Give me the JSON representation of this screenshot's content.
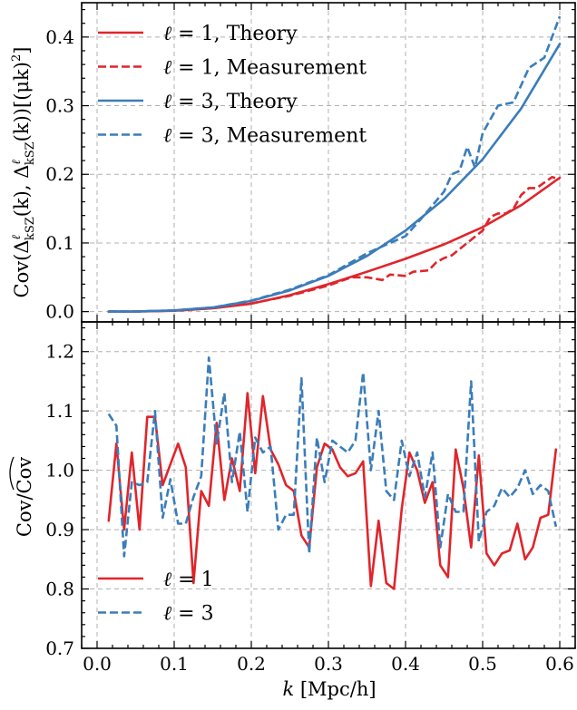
{
  "colors": {
    "l1": "#e0252b",
    "l3": "#3a7dba",
    "grid": "#b0b0b0"
  },
  "chart_data": [
    {
      "type": "line",
      "panel": "top",
      "ylabel": "Cov(Δ^ℓ_kSZ(k), Δ^ℓ_kSZ(k))[(μk)^2]",
      "ylabel_parts": {
        "pre": "Cov",
        "delta": "Δ",
        "sup": "ℓ",
        "sub": "kSZ",
        "arg": "(k)",
        "unit": "[(μk)",
        "unit_exp": "2",
        "close": "]"
      },
      "ylim": [
        -0.015,
        0.45
      ],
      "yticks": [
        0.0,
        0.1,
        0.2,
        0.3,
        0.4
      ],
      "ytick_labels": [
        "0.0",
        "0.1",
        "0.2",
        "0.3",
        "0.4"
      ],
      "xlim": [
        -0.02,
        0.62
      ],
      "grid": true,
      "legend_position": "top-left",
      "series": [
        {
          "name": "ℓ = 1, Theory",
          "legend_sym": "ℓ",
          "legend_eq": " = 1, Theory",
          "style": "solid",
          "color": "#e0252b",
          "x": [
            0.015,
            0.05,
            0.1,
            0.15,
            0.2,
            0.25,
            0.3,
            0.35,
            0.4,
            0.45,
            0.5,
            0.55,
            0.6
          ],
          "y": [
            0.0,
            0.0001,
            0.0013,
            0.0048,
            0.0116,
            0.024,
            0.04,
            0.058,
            0.077,
            0.098,
            0.123,
            0.155,
            0.195
          ]
        },
        {
          "name": "ℓ = 1, Measurement",
          "legend_sym": "ℓ",
          "legend_eq": " = 1, Measurement",
          "style": "dashed",
          "color": "#e0252b",
          "x": [
            0.015,
            0.05,
            0.1,
            0.15,
            0.2,
            0.25,
            0.3,
            0.33,
            0.35,
            0.37,
            0.38,
            0.4,
            0.41,
            0.43,
            0.44,
            0.45,
            0.46,
            0.48,
            0.5,
            0.51,
            0.52,
            0.53,
            0.54,
            0.55,
            0.56,
            0.57,
            0.58,
            0.59,
            0.6
          ],
          "y": [
            0.0,
            0.0002,
            0.0014,
            0.005,
            0.012,
            0.023,
            0.038,
            0.05,
            0.05,
            0.046,
            0.054,
            0.052,
            0.058,
            0.06,
            0.072,
            0.078,
            0.082,
            0.1,
            0.118,
            0.138,
            0.143,
            0.143,
            0.15,
            0.17,
            0.18,
            0.18,
            0.188,
            0.196,
            0.193
          ]
        },
        {
          "name": "ℓ = 3, Theory",
          "legend_sym": "ℓ",
          "legend_eq": " = 3, Theory",
          "style": "solid",
          "color": "#3a7dba",
          "x": [
            0.015,
            0.05,
            0.1,
            0.15,
            0.2,
            0.25,
            0.3,
            0.35,
            0.4,
            0.45,
            0.5,
            0.55,
            0.6
          ],
          "y": [
            0.0,
            0.0002,
            0.0018,
            0.006,
            0.0155,
            0.031,
            0.052,
            0.081,
            0.118,
            0.164,
            0.222,
            0.296,
            0.39
          ]
        },
        {
          "name": "ℓ = 3, Measurement",
          "legend_sym": "ℓ",
          "legend_eq": " = 3, Measurement",
          "style": "dashed",
          "color": "#3a7dba",
          "x": [
            0.015,
            0.05,
            0.1,
            0.15,
            0.2,
            0.25,
            0.3,
            0.35,
            0.38,
            0.4,
            0.42,
            0.45,
            0.46,
            0.47,
            0.48,
            0.49,
            0.5,
            0.52,
            0.54,
            0.56,
            0.58,
            0.6
          ],
          "y": [
            0.0,
            0.0002,
            0.0018,
            0.006,
            0.016,
            0.032,
            0.053,
            0.085,
            0.1,
            0.11,
            0.135,
            0.175,
            0.2,
            0.205,
            0.24,
            0.21,
            0.26,
            0.3,
            0.305,
            0.355,
            0.37,
            0.43
          ]
        }
      ]
    },
    {
      "type": "line",
      "panel": "bottom",
      "xlabel": "k [Mpc/h]",
      "xlabel_parts": {
        "var": "k",
        "unit": " [Mpc/h]"
      },
      "ylabel": "Cov/Ĉov",
      "ylabel_parts": {
        "num": "Cov/",
        "hat": "Cov"
      },
      "ylim": [
        0.7,
        1.25
      ],
      "yticks": [
        0.7,
        0.8,
        0.9,
        1.0,
        1.1,
        1.2
      ],
      "ytick_labels": [
        "0.7",
        "0.8",
        "0.9",
        "1.0",
        "1.1",
        "1.2"
      ],
      "xlim": [
        -0.02,
        0.62
      ],
      "xticks": [
        0.0,
        0.1,
        0.2,
        0.3,
        0.4,
        0.5,
        0.6
      ],
      "xtick_labels": [
        "0.0",
        "0.1",
        "0.2",
        "0.3",
        "0.4",
        "0.5",
        "0.6"
      ],
      "grid": true,
      "legend_position": "bottom-left",
      "series": [
        {
          "name": "ℓ = 1",
          "legend_sym": "ℓ",
          "legend_eq": " = 1",
          "style": "solid",
          "color": "#e0252b",
          "x": [
            0.015,
            0.025,
            0.035,
            0.045,
            0.055,
            0.065,
            0.075,
            0.085,
            0.095,
            0.105,
            0.115,
            0.125,
            0.135,
            0.145,
            0.155,
            0.165,
            0.175,
            0.185,
            0.195,
            0.205,
            0.215,
            0.225,
            0.235,
            0.245,
            0.255,
            0.265,
            0.275,
            0.285,
            0.295,
            0.305,
            0.315,
            0.325,
            0.335,
            0.345,
            0.355,
            0.365,
            0.375,
            0.385,
            0.395,
            0.405,
            0.415,
            0.425,
            0.435,
            0.445,
            0.455,
            0.465,
            0.475,
            0.485,
            0.495,
            0.505,
            0.515,
            0.525,
            0.535,
            0.545,
            0.555,
            0.565,
            0.575,
            0.585,
            0.595
          ],
          "y": [
            0.915,
            1.045,
            0.9,
            1.03,
            0.9,
            1.09,
            1.09,
            0.975,
            1.01,
            1.045,
            1.005,
            0.81,
            0.965,
            0.94,
            1.08,
            0.95,
            1.02,
            0.965,
            1.13,
            0.995,
            1.125,
            1.035,
            1.01,
            0.975,
            0.965,
            0.89,
            0.87,
            1.005,
            1.045,
            1.035,
            1.005,
            0.99,
            0.995,
            1.015,
            0.805,
            0.915,
            0.81,
            0.8,
            0.935,
            1.03,
            1.0,
            0.945,
            0.98,
            0.84,
            0.82,
            1.035,
            0.97,
            0.87,
            1.025,
            0.86,
            0.84,
            0.86,
            0.865,
            0.91,
            0.85,
            0.87,
            0.92,
            0.925,
            1.035
          ]
        },
        {
          "name": "ℓ = 3",
          "legend_sym": "ℓ",
          "legend_eq": " = 3",
          "style": "dashed",
          "color": "#3a7dba",
          "x": [
            0.015,
            0.025,
            0.035,
            0.045,
            0.055,
            0.065,
            0.075,
            0.085,
            0.095,
            0.105,
            0.115,
            0.125,
            0.135,
            0.145,
            0.155,
            0.165,
            0.175,
            0.185,
            0.195,
            0.205,
            0.215,
            0.225,
            0.235,
            0.245,
            0.255,
            0.265,
            0.275,
            0.285,
            0.295,
            0.305,
            0.315,
            0.325,
            0.335,
            0.345,
            0.355,
            0.365,
            0.375,
            0.385,
            0.395,
            0.405,
            0.415,
            0.425,
            0.435,
            0.445,
            0.455,
            0.465,
            0.475,
            0.485,
            0.495,
            0.505,
            0.515,
            0.525,
            0.535,
            0.545,
            0.555,
            0.565,
            0.575,
            0.585,
            0.595
          ],
          "y": [
            1.095,
            1.075,
            0.855,
            0.98,
            0.975,
            0.98,
            1.1,
            0.92,
            0.985,
            0.91,
            0.91,
            0.955,
            0.99,
            1.19,
            1.045,
            1.13,
            0.98,
            1.065,
            0.93,
            1.055,
            1.03,
            1.04,
            0.9,
            0.925,
            0.925,
            1.155,
            0.86,
            1.055,
            0.98,
            1.05,
            1.04,
            1.03,
            1.05,
            1.165,
            1.0,
            1.1,
            0.965,
            0.95,
            1.05,
            0.99,
            1.03,
            0.955,
            1.03,
            0.87,
            0.96,
            0.93,
            0.93,
            1.15,
            0.88,
            0.93,
            0.94,
            0.97,
            0.955,
            0.97,
            1.0,
            0.96,
            0.975,
            0.965,
            0.905
          ]
        }
      ]
    }
  ]
}
